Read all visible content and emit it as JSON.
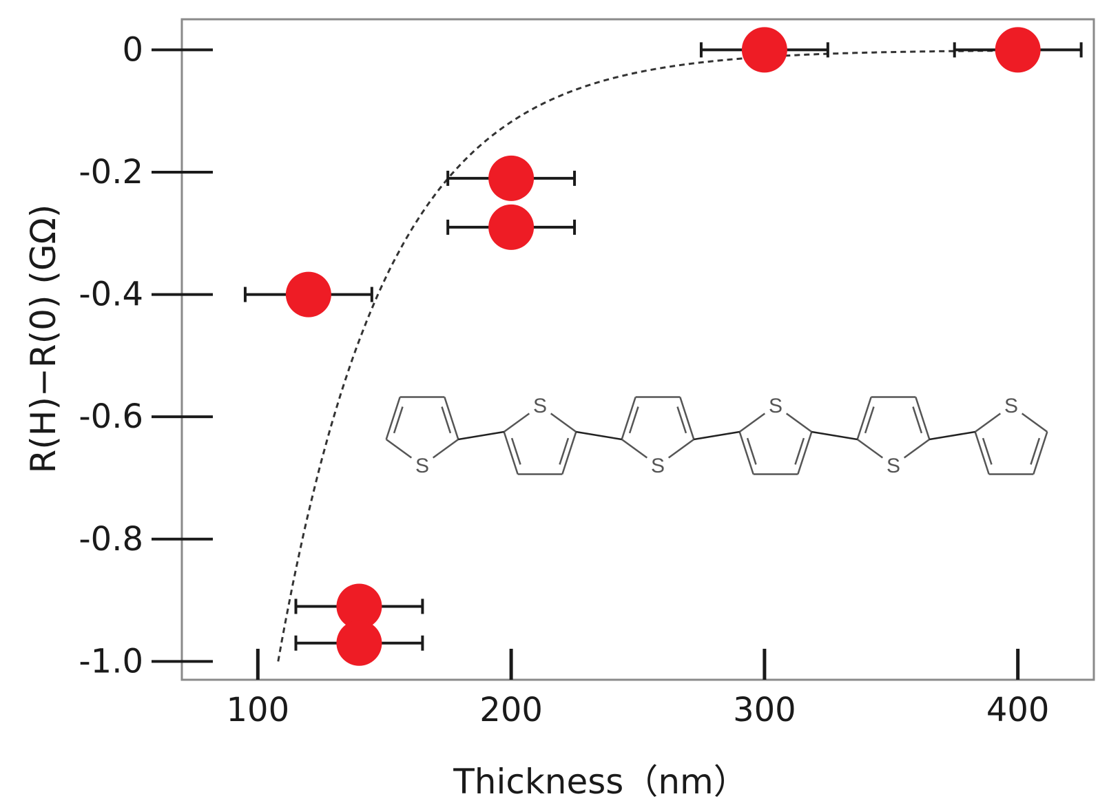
{
  "chart_data": {
    "type": "scatter",
    "title": "",
    "xlabel": "Thickness（nm）",
    "ylabel": "R(H)−R(0) (GΩ)",
    "xlim": [
      70,
      430
    ],
    "ylim": [
      -1.03,
      0.05
    ],
    "xticks": [
      {
        "value": 100,
        "label": "100"
      },
      {
        "value": 200,
        "label": "200"
      },
      {
        "value": 300,
        "label": "300"
      },
      {
        "value": 400,
        "label": "400"
      }
    ],
    "yticks": [
      {
        "value": 0,
        "label": "0"
      },
      {
        "value": -0.2,
        "label": "-0.2"
      },
      {
        "value": -0.4,
        "label": "-0.4"
      },
      {
        "value": -0.6,
        "label": "-0.6"
      },
      {
        "value": -0.8,
        "label": "-0.8"
      },
      {
        "value": -1.0,
        "label": "-1.0"
      }
    ],
    "series": [
      {
        "name": "data",
        "color": "#ee1c25",
        "points": [
          {
            "x": 120,
            "y": -0.4,
            "xerr": 25
          },
          {
            "x": 140,
            "y": -0.91,
            "xerr": 25
          },
          {
            "x": 140,
            "y": -0.97,
            "xerr": 25
          },
          {
            "x": 200,
            "y": -0.21,
            "xerr": 25
          },
          {
            "x": 200,
            "y": -0.29,
            "xerr": 25
          },
          {
            "x": 300,
            "y": 0.0,
            "xerr": 25
          },
          {
            "x": 400,
            "y": 0.0,
            "xerr": 25
          }
        ]
      }
    ],
    "fit": {
      "name": "exponential fit",
      "style": "dashed",
      "color": "#333333",
      "x_start": 108,
      "x_end": 400,
      "amplitude": 1.0,
      "x0": 108,
      "decay_length": 43
    },
    "inset": {
      "type": "molecule",
      "name": "sexithiophene",
      "atom_label": "S"
    }
  }
}
